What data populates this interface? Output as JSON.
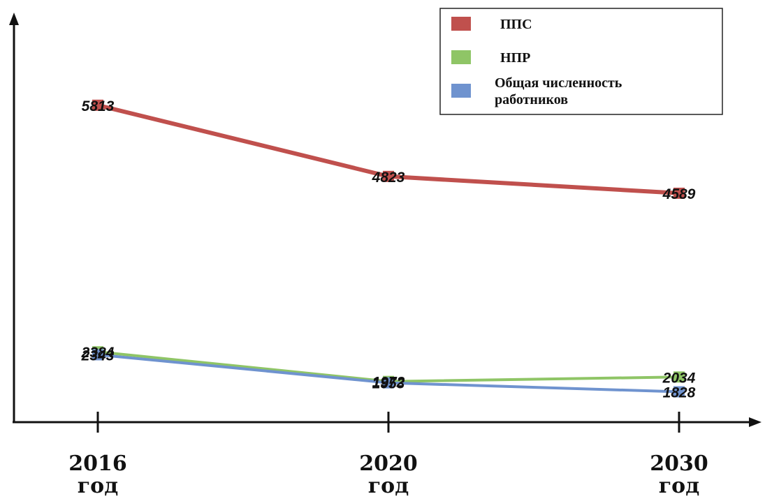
{
  "chart_data": {
    "type": "line",
    "categories": [
      [
        "2016",
        "год"
      ],
      [
        "2020",
        "год"
      ],
      [
        "2030",
        "год"
      ]
    ],
    "series": [
      {
        "name": "ППС",
        "legend_lines": [
          "ППС"
        ],
        "color": "#c0504d",
        "values": [
          5813,
          4823,
          4589
        ]
      },
      {
        "name": "НПР",
        "legend_lines": [
          "НПР"
        ],
        "color": "#8fc566",
        "values": [
          2384,
          1972,
          2034
        ]
      },
      {
        "name": "Общая численность работников",
        "legend_lines": [
          "Общая численность",
          "работников"
        ],
        "color": "#6f93cf",
        "values": [
          2343,
          1953,
          1828
        ]
      }
    ],
    "ylim": [
      1600,
      6500
    ],
    "grid": false,
    "legend_position": "top-right"
  }
}
